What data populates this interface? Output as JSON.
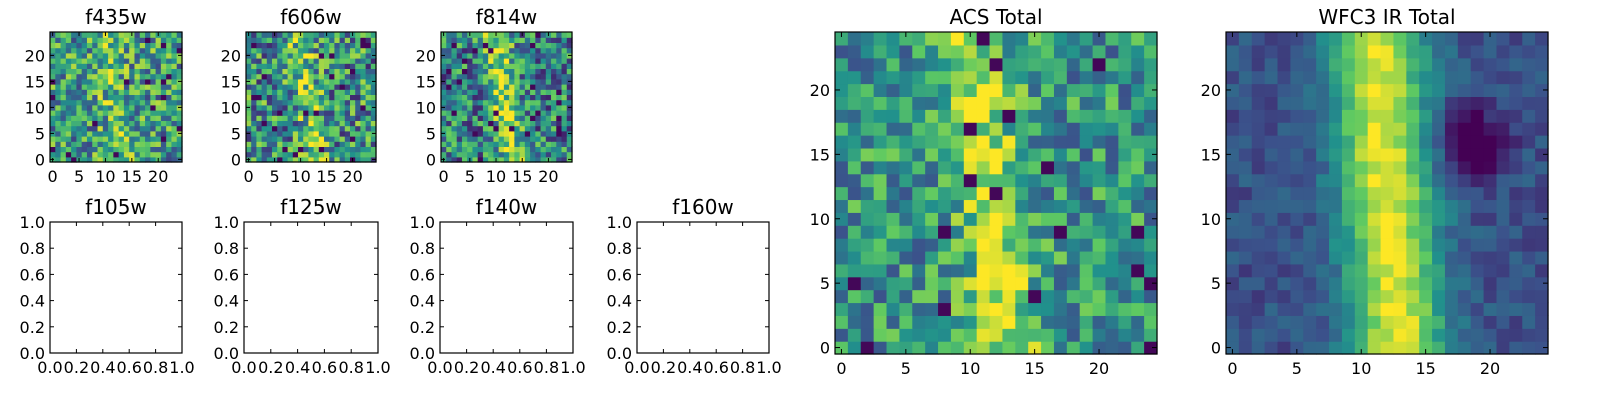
{
  "colormap": [
    "#440154",
    "#3b528b",
    "#21918c",
    "#5ec962",
    "#fde725"
  ],
  "chart_data": [
    {
      "type": "heatmap",
      "title": "f435w",
      "xlim": [
        -0.5,
        24.5
      ],
      "ylim": [
        -0.5,
        24.5
      ],
      "grid": false,
      "xticks": [
        0,
        5,
        10,
        15,
        20
      ],
      "yticks": [
        0,
        5,
        10,
        15,
        20
      ],
      "description_of_values": "noisy pixel image"
    },
    {
      "type": "heatmap",
      "title": "f606w",
      "xlim": [
        -0.5,
        24.5
      ],
      "ylim": [
        -0.5,
        24.5
      ],
      "grid": false,
      "xticks": [
        0,
        5,
        10,
        15,
        20
      ],
      "yticks": [
        0,
        5,
        10,
        15,
        20
      ]
    },
    {
      "type": "heatmap",
      "title": "f814w",
      "xlim": [
        -0.5,
        24.5
      ],
      "ylim": [
        -0.5,
        24.5
      ],
      "grid": false,
      "xticks": [
        0,
        5,
        10,
        15,
        20
      ],
      "yticks": [
        0,
        5,
        10,
        15,
        20
      ]
    },
    {
      "type": "scatter",
      "title": "f105w",
      "xlim": [
        0,
        1
      ],
      "ylim": [
        0,
        1
      ],
      "xticks": [
        "0.0",
        "0.2",
        "0.4",
        "0.6",
        "0.8",
        "1.0"
      ],
      "yticks": [
        "0.0",
        "0.2",
        "0.4",
        "0.6",
        "0.8",
        "1.0"
      ],
      "series": []
    },
    {
      "type": "scatter",
      "title": "f125w",
      "xlim": [
        0,
        1
      ],
      "ylim": [
        0,
        1
      ],
      "xticks": [
        "0.0",
        "0.2",
        "0.4",
        "0.6",
        "0.8",
        "1.0"
      ],
      "yticks": [
        "0.0",
        "0.2",
        "0.4",
        "0.6",
        "0.8",
        "1.0"
      ],
      "series": []
    },
    {
      "type": "scatter",
      "title": "f140w",
      "xlim": [
        0,
        1
      ],
      "ylim": [
        0,
        1
      ],
      "xticks": [
        "0.0",
        "0.2",
        "0.4",
        "0.6",
        "0.8",
        "1.0"
      ],
      "yticks": [
        "0.0",
        "0.2",
        "0.4",
        "0.6",
        "0.8",
        "1.0"
      ],
      "series": []
    },
    {
      "type": "scatter",
      "title": "f160w",
      "xlim": [
        0,
        1
      ],
      "ylim": [
        0,
        1
      ],
      "xticks": [
        "0.0",
        "0.2",
        "0.4",
        "0.6",
        "0.8",
        "1.0"
      ],
      "yticks": [
        "0.0",
        "0.2",
        "0.4",
        "0.6",
        "0.8",
        "1.0"
      ],
      "series": []
    },
    {
      "type": "heatmap",
      "title": "ACS Total",
      "xlim": [
        -0.5,
        24.5
      ],
      "ylim": [
        -0.5,
        24.5
      ],
      "grid": false,
      "xticks": [
        0,
        5,
        10,
        15,
        20
      ],
      "yticks": [
        0,
        5,
        10,
        15,
        20
      ]
    },
    {
      "type": "heatmap",
      "title": "WFC3 IR Total",
      "xlim": [
        -0.5,
        24.5
      ],
      "ylim": [
        -0.5,
        24.5
      ],
      "grid": false,
      "xticks": [
        0,
        5,
        10,
        15,
        20
      ],
      "yticks": [
        0,
        5,
        10,
        15,
        20
      ]
    }
  ]
}
